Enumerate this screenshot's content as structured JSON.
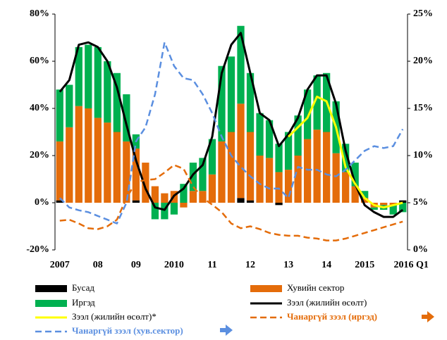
{
  "chart_data": {
    "type": "bar",
    "categories": [
      "2007",
      null,
      null,
      null,
      "08",
      null,
      null,
      null,
      "09",
      null,
      null,
      null,
      "2010",
      null,
      null,
      null,
      "11",
      null,
      null,
      null,
      "12",
      null,
      null,
      null,
      "13",
      null,
      null,
      null,
      "14",
      null,
      null,
      null,
      "2015",
      null,
      null,
      null,
      "2016 Q1"
    ],
    "ylim": [
      -20,
      80
    ],
    "yticks": [
      {
        "value": -20,
        "label": "-20%"
      },
      {
        "value": 0,
        "label": "0%"
      },
      {
        "value": 20,
        "label": "20%"
      },
      {
        "value": 40,
        "label": "40%"
      },
      {
        "value": 60,
        "label": "60%"
      },
      {
        "value": 80,
        "label": "80%"
      }
    ],
    "y2lim": [
      0,
      25
    ],
    "y2ticks": [
      {
        "value": 0,
        "label": "0%"
      },
      {
        "value": 5,
        "label": "5%"
      },
      {
        "value": 10,
        "label": "10%"
      },
      {
        "value": 15,
        "label": "15%"
      },
      {
        "value": 20,
        "label": "20%"
      },
      {
        "value": 25,
        "label": "25%"
      }
    ],
    "series": [
      {
        "name": "Бусад",
        "type": "bar",
        "color": "#000000",
        "values": [
          1,
          0,
          0,
          0,
          0,
          0,
          0,
          0,
          1,
          0,
          0,
          0,
          0,
          0,
          0,
          0,
          0,
          0,
          0,
          2,
          1,
          0,
          0,
          -1,
          0,
          0,
          0,
          0,
          0,
          0,
          0,
          0,
          0,
          0,
          0,
          0,
          1
        ]
      },
      {
        "name": "Хувийн сектор",
        "type": "bar",
        "color": "#e46c0a",
        "values": [
          25,
          32,
          41,
          40,
          36,
          34,
          30,
          26,
          22,
          17,
          7,
          4,
          5,
          -2,
          5,
          5,
          12,
          26,
          30,
          40,
          29,
          20,
          19,
          13,
          14,
          20,
          27,
          31,
          30,
          21,
          13,
          7,
          2,
          -2,
          -1,
          -1,
          0
        ]
      },
      {
        "name": "Иргэд",
        "type": "bar",
        "color": "#00b050",
        "values": [
          22,
          18,
          25,
          27,
          30,
          26,
          25,
          20,
          6,
          0,
          -7,
          -7,
          -5,
          8,
          12,
          14,
          15,
          32,
          32,
          33,
          25,
          18,
          16,
          12,
          16,
          17,
          21,
          23,
          25,
          22,
          12,
          10,
          3,
          -1,
          -2,
          -4,
          -4
        ]
      },
      {
        "name": "Зээл (жилийн өсөлт)",
        "type": "line",
        "color": "#000000",
        "width": 3,
        "values": [
          47,
          52,
          67,
          68,
          66,
          60,
          49,
          33,
          18,
          6,
          -2,
          -3,
          3,
          6,
          12,
          16,
          28,
          55,
          67,
          72,
          55,
          38,
          35,
          24,
          29,
          36,
          48,
          54,
          54,
          42,
          22,
          8,
          -1,
          -4,
          -6,
          -6,
          -3
        ]
      },
      {
        "name": "Зээл (жилийн өсөлт)*",
        "type": "line",
        "color": "#ffff00",
        "width": 3,
        "values": [
          null,
          null,
          null,
          null,
          null,
          null,
          null,
          null,
          null,
          null,
          null,
          null,
          null,
          null,
          null,
          null,
          null,
          null,
          null,
          null,
          null,
          null,
          null,
          null,
          28,
          32,
          36,
          45,
          43,
          32,
          15,
          8,
          2,
          -1,
          -2,
          -1,
          0
        ]
      },
      {
        "name": "Чанаргүй зээл (иргэд)",
        "type": "line",
        "axis": "y2",
        "dash": true,
        "color": "#e46c0a",
        "width": 2.5,
        "values": [
          3.1,
          3.2,
          2.8,
          2.3,
          2.2,
          2.5,
          3.2,
          5.5,
          7.2,
          7.4,
          7.5,
          8.2,
          9.0,
          8.6,
          6.7,
          5.5,
          4.8,
          4.0,
          2.8,
          2.3,
          2.5,
          2.2,
          1.8,
          1.6,
          1.5,
          1.5,
          1.3,
          1.2,
          1.0,
          1.0,
          1.2,
          1.5,
          1.8,
          2.1,
          2.4,
          2.7,
          3.0
        ]
      },
      {
        "name": "Чанаргүй зээл (хув.сектор)",
        "type": "line",
        "axis": "y2",
        "dash": true,
        "color": "#5b8fe0",
        "width": 2.5,
        "values": [
          5.5,
          4.5,
          4.2,
          4.0,
          3.6,
          3.2,
          2.8,
          5.0,
          11.5,
          13.0,
          16.5,
          22.0,
          19.5,
          18.2,
          18.0,
          16.5,
          14.5,
          12.0,
          10.0,
          8.8,
          7.8,
          7.0,
          6.5,
          6.5,
          5.5,
          8.8,
          8.5,
          8.5,
          8.0,
          7.8,
          8.5,
          9.5,
          10.5,
          11.0,
          10.8,
          11.0,
          12.8
        ]
      }
    ]
  }
}
